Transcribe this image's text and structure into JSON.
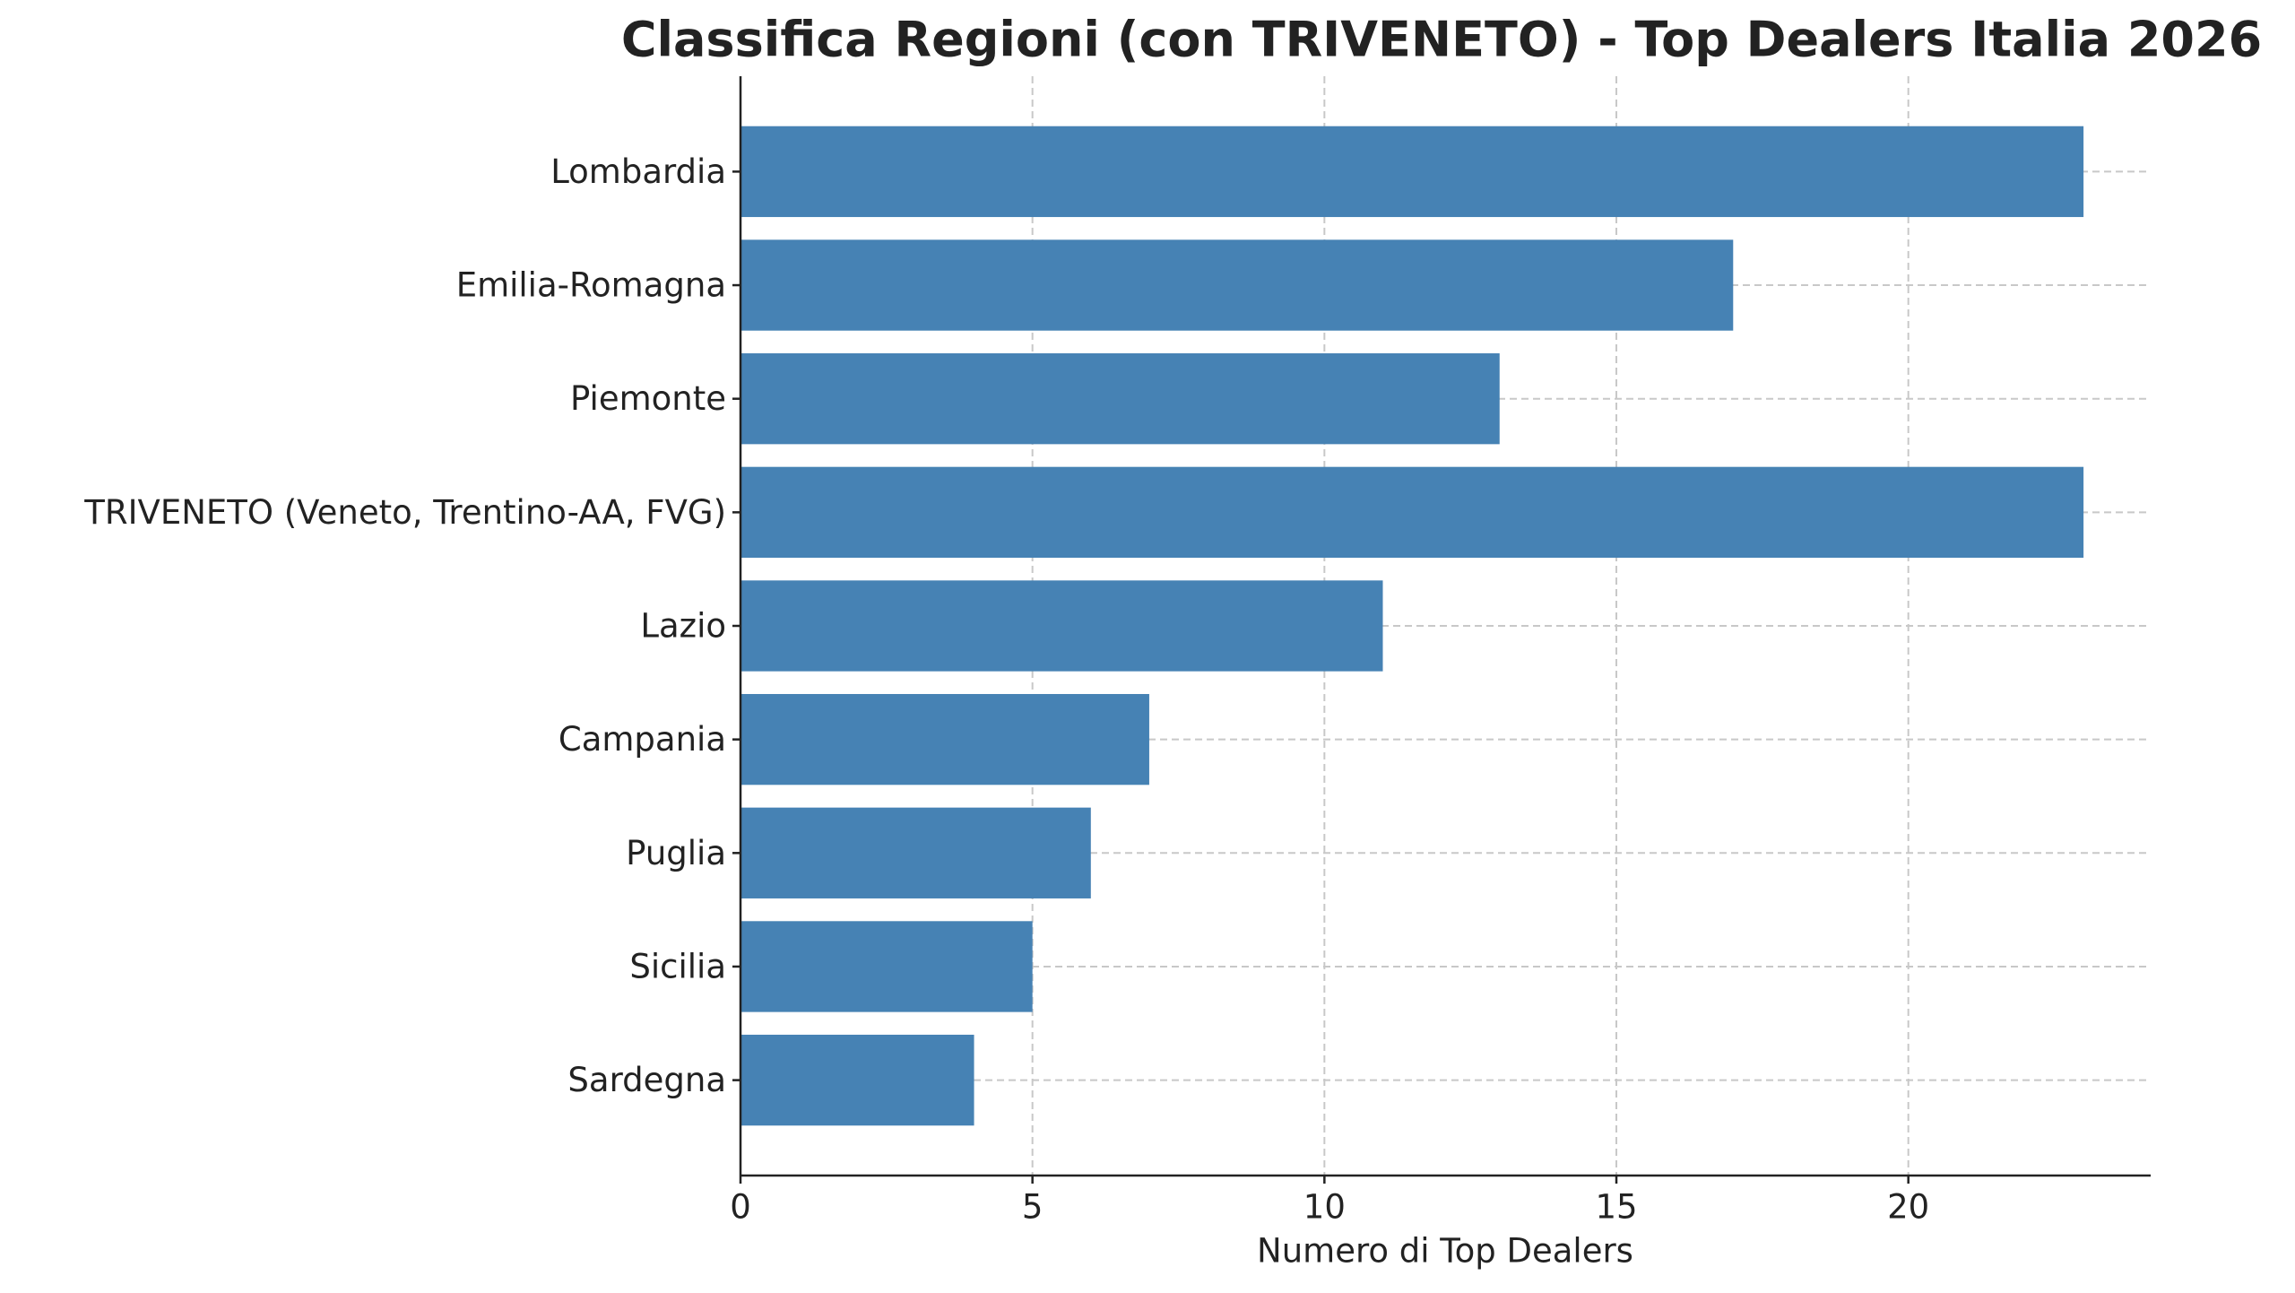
{
  "chart_data": {
    "type": "barh",
    "title": "Classifica Regioni (con TRIVENETO) - Top Dealers Italia 2026",
    "x_label": "Numero di Top Dealers",
    "categories": [
      "Lombardia",
      "Emilia-Romagna",
      "Piemonte",
      "TRIVENETO (Veneto, Trentino-AA, FVG)",
      "Lazio",
      "Campania",
      "Puglia",
      "Sicilia",
      "Sardegna"
    ],
    "values": [
      23,
      17,
      13,
      23,
      11,
      7,
      6,
      5,
      4
    ],
    "color": "#4682b4",
    "xlim": [
      0,
      24.15
    ],
    "xticks": [
      0,
      5,
      10,
      15,
      20
    ],
    "grid": true
  }
}
